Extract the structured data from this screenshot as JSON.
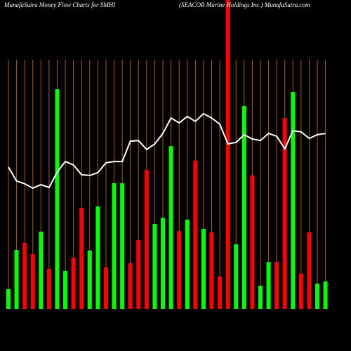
{
  "chart_data": {
    "type": "money-flow",
    "title": "MunafaSutra  Money Flow  Charts for SMHI",
    "subtitle": "(SEACOR Marine    Holdings Inc.) MunafaSutra.com",
    "ylim": [
      0,
      100
    ],
    "grid": true,
    "grid_color": "#b05a10",
    "bars": {
      "values": [
        6.4,
        19.1,
        21.4,
        17.7,
        25,
        13,
        71.1,
        12.3,
        16.6,
        32.7,
        18.9,
        33.2,
        13.4,
        40.7,
        40.7,
        14.8,
        22.3,
        45,
        27.5,
        29.5,
        52.7,
        25.2,
        28.9,
        48,
        25.9,
        24.8,
        10.5,
        100,
        20.9,
        65.7,
        43.2,
        7.5,
        15.2,
        15.2,
        61.8,
        70.2,
        11.4,
        24.8,
        8.2,
        8.9
      ],
      "colors": [
        "#00ff00",
        "#00ff00",
        "#ff0000",
        "#ff0000",
        "#00ff00",
        "#ff0000",
        "#00ff00",
        "#00ff00",
        "#ff0000",
        "#ff0000",
        "#00ff00",
        "#00ff00",
        "#ff0000",
        "#00ff00",
        "#00ff00",
        "#ff0000",
        "#ff0000",
        "#ff0000",
        "#00ff00",
        "#00ff00",
        "#00ff00",
        "#ff0000",
        "#00ff00",
        "#ff0000",
        "#00ff00",
        "#ff0000",
        "#ff0000",
        "#ff0000",
        "#00ff00",
        "#00ff00",
        "#ff0000",
        "#00ff00",
        "#00ff00",
        "#ff0000",
        "#ff0000",
        "#00ff00",
        "#ff0000",
        "#ff0000",
        "#00ff00",
        "#00ff00"
      ]
    },
    "line": {
      "color": "#ffffff",
      "values": [
        45.9,
        41.4,
        40.5,
        39.1,
        40.2,
        39.3,
        44.3,
        47.7,
        46.6,
        43.4,
        43.2,
        44.1,
        47.3,
        47.7,
        47.7,
        54.3,
        54.5,
        51.6,
        53.4,
        56.8,
        61.8,
        60.2,
        62.3,
        60.7,
        63.2,
        61.8,
        59.8,
        53.4,
        53.9,
        56.4,
        55,
        54.5,
        56.8,
        55.9,
        51.8,
        57.7,
        57.3,
        55.2,
        56.4,
        56.8
      ]
    }
  }
}
